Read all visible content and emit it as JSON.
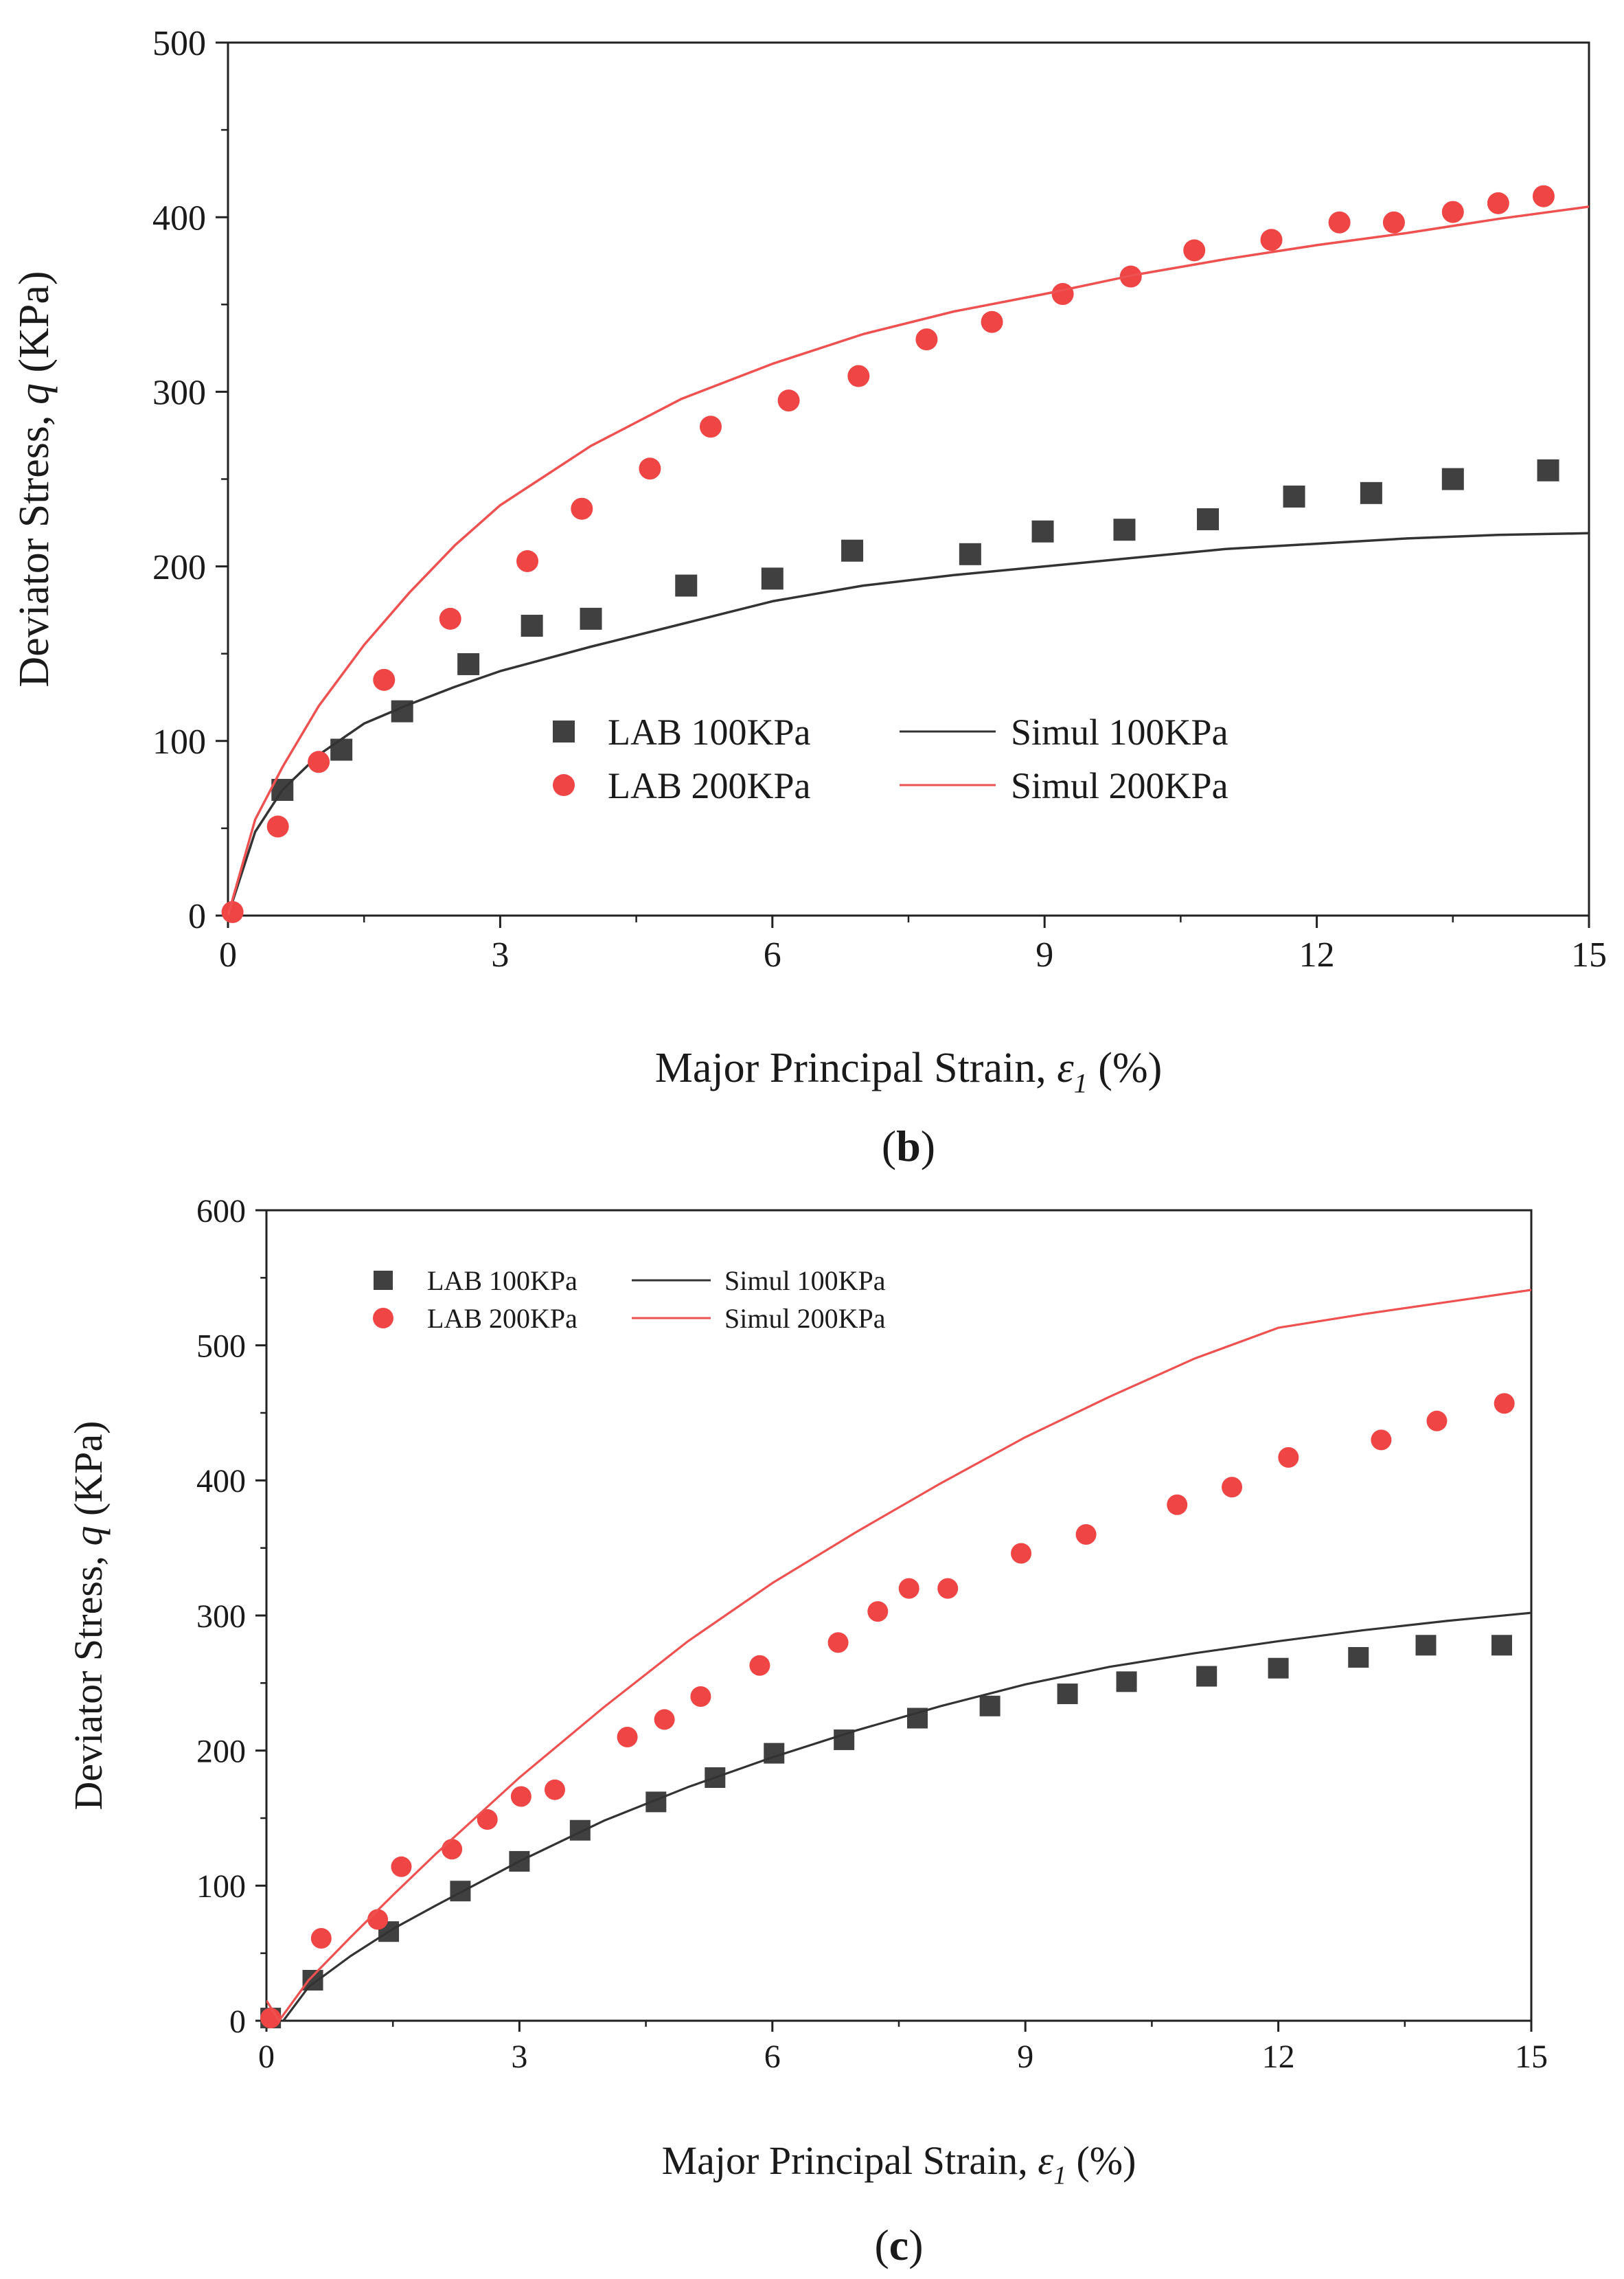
{
  "chart_data": [
    {
      "type": "scatter",
      "panel_label": "b",
      "xlabel": "Major Principal Strain, ",
      "xlabel_symbol": "ε",
      "xlabel_subscript": "1",
      "xlabel_unit": " (%)",
      "ylabel": "Deviator Stress, ",
      "ylabel_symbol": "q",
      "ylabel_unit": " (KPa)",
      "xlim": [
        0,
        15
      ],
      "ylim": [
        0,
        500
      ],
      "xticks": [
        0,
        3,
        6,
        9,
        12,
        15
      ],
      "yticks": [
        0,
        100,
        200,
        300,
        400,
        500
      ],
      "legend": {
        "placement": "center",
        "layout": "2x2"
      },
      "series": [
        {
          "name": "LAB 100KPa",
          "kind": "points",
          "marker": "square",
          "color": "#404040",
          "x": [
            0.6,
            1.25,
            1.92,
            2.65,
            3.35,
            4.0,
            5.05,
            6.0,
            6.88,
            8.18,
            8.98,
            9.88,
            10.8,
            11.75,
            12.6,
            13.5,
            14.55
          ],
          "y": [
            72,
            95,
            117,
            144,
            166,
            170,
            189,
            193,
            209,
            207,
            220,
            221,
            227,
            240,
            242,
            250,
            255
          ]
        },
        {
          "name": "Simul  100KPa",
          "kind": "line",
          "color": "#333333",
          "x": [
            0,
            0.3,
            0.6,
            1.0,
            1.5,
            2.0,
            2.5,
            3.0,
            4.0,
            5.0,
            6.0,
            7.0,
            8.0,
            9.0,
            10.0,
            11.0,
            12.0,
            13.0,
            14.0,
            15.0
          ],
          "y": [
            0,
            48,
            72,
            92,
            110,
            121,
            131,
            140,
            154,
            167,
            180,
            189,
            195,
            200,
            205,
            210,
            213,
            216,
            218,
            219
          ]
        },
        {
          "name": "LAB 200KPa",
          "kind": "points",
          "marker": "circle",
          "color": "#ef4545",
          "x": [
            0.05,
            0.55,
            1.0,
            1.72,
            2.45,
            3.3,
            3.9,
            4.65,
            5.32,
            6.18,
            6.95,
            7.7,
            8.42,
            9.2,
            9.95,
            10.65,
            11.5,
            12.25,
            12.85,
            13.5,
            14.0,
            14.5
          ],
          "y": [
            2,
            51,
            88,
            135,
            170,
            203,
            233,
            256,
            280,
            295,
            309,
            330,
            340,
            356,
            366,
            381,
            387,
            397,
            397,
            403,
            408,
            412
          ]
        },
        {
          "name": "Simul  200KPa",
          "kind": "line",
          "color": "#ef5050",
          "x": [
            0,
            0.3,
            0.6,
            1.0,
            1.5,
            2.0,
            2.5,
            3.0,
            4.0,
            5.0,
            6.0,
            7.0,
            8.0,
            9.0,
            10.0,
            11.0,
            12.0,
            13.0,
            14.0,
            15.0
          ],
          "y": [
            0,
            55,
            85,
            120,
            155,
            185,
            212,
            235,
            269,
            296,
            316,
            333,
            346,
            356,
            367,
            376,
            384,
            391,
            399,
            406
          ]
        }
      ]
    },
    {
      "type": "scatter",
      "panel_label": "c",
      "xlabel": "Major Principal Strain, ",
      "xlabel_symbol": "ε",
      "xlabel_subscript": "1",
      "xlabel_unit": " (%)",
      "ylabel": "Deviator Stress, ",
      "ylabel_symbol": "q",
      "ylabel_unit": " (KPa)",
      "xlim": [
        0,
        15
      ],
      "ylim": [
        0,
        600
      ],
      "xticks": [
        0,
        3,
        6,
        9,
        12,
        15
      ],
      "yticks": [
        0,
        100,
        200,
        300,
        400,
        500,
        600
      ],
      "legend": {
        "placement": "top-left",
        "layout": "2x2"
      },
      "series": [
        {
          "name": "LAB 100KPa",
          "kind": "points",
          "marker": "square",
          "color": "#404040",
          "x": [
            0.05,
            0.55,
            1.45,
            2.3,
            3.0,
            3.72,
            4.62,
            5.32,
            6.02,
            6.85,
            7.72,
            8.58,
            9.5,
            10.2,
            11.15,
            12.0,
            12.95,
            13.75,
            14.65
          ],
          "y": [
            2,
            30,
            66,
            96,
            118,
            141,
            162,
            180,
            198,
            208,
            224,
            233,
            242,
            251,
            255,
            261,
            269,
            278,
            278
          ]
        },
        {
          "name": "Simul  100KPa",
          "kind": "line",
          "color": "#333333",
          "x": [
            0.2,
            0.5,
            1.0,
            1.5,
            2.0,
            3.0,
            4.0,
            5.0,
            6.0,
            7.0,
            8.0,
            9.0,
            10.0,
            11.0,
            12.0,
            13.0,
            14.0,
            15.0
          ],
          "y": [
            0,
            25,
            48,
            68,
            85,
            118,
            148,
            173,
            195,
            215,
            233,
            249,
            262,
            272,
            281,
            289,
            296,
            302
          ]
        },
        {
          "name": "LAB 200KPa",
          "kind": "points",
          "marker": "circle",
          "color": "#ef4545",
          "x": [
            0.05,
            0.65,
            1.32,
            1.6,
            2.2,
            2.62,
            3.02,
            3.42,
            4.28,
            4.72,
            5.15,
            5.85,
            6.78,
            7.25,
            7.62,
            8.08,
            8.95,
            9.72,
            10.8,
            11.45,
            12.12,
            13.22,
            13.88,
            14.68
          ],
          "y": [
            2,
            61,
            75,
            114,
            127,
            149,
            166,
            171,
            210,
            223,
            240,
            263,
            280,
            303,
            320,
            320,
            346,
            360,
            382,
            395,
            417,
            430,
            444,
            457
          ]
        },
        {
          "name": "Simul  200KPa",
          "kind": "line",
          "color": "#ef5050",
          "x": [
            0,
            0.15,
            0.5,
            1.0,
            1.5,
            2.0,
            3.0,
            4.0,
            5.0,
            6.0,
            7.0,
            8.0,
            9.0,
            10.0,
            11.0,
            12.0,
            13.0,
            14.0,
            15.0
          ],
          "y": [
            15,
            0,
            30,
            62,
            93,
            123,
            180,
            232,
            281,
            324,
            362,
            398,
            432,
            462,
            490,
            513,
            523,
            532,
            541
          ]
        }
      ]
    }
  ]
}
